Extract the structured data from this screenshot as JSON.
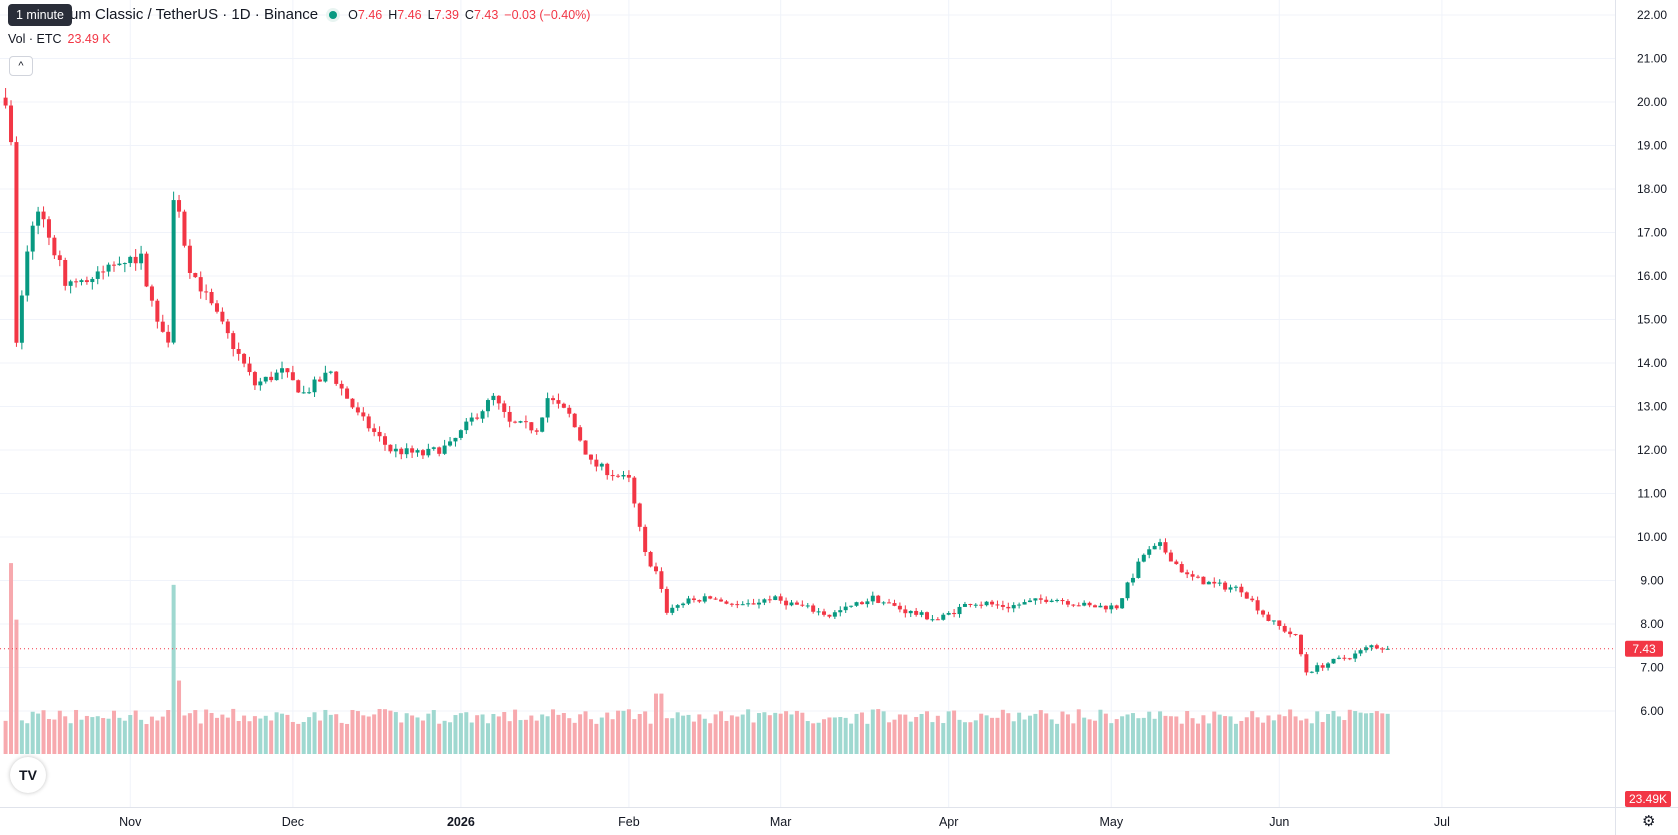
{
  "legend": {
    "symbol": "um Classic / TetherUS · 1D · Binance",
    "o_label": "O",
    "o": "7.46",
    "h_label": "H",
    "h": "7.46",
    "l_label": "L",
    "l": "7.39",
    "c_label": "C",
    "c": "7.43",
    "change": "−0.03 (−0.40%)"
  },
  "tooltip": "1 minute",
  "volume_label": {
    "name": "Vol · ETC",
    "value": "23.49 K"
  },
  "colors": {
    "up": "#089981",
    "down": "#f23645",
    "vol_up": "#9fd8d0",
    "vol_down": "#f7a9ae",
    "grid": "#f0f3fa"
  },
  "icons": {
    "collapse": "chevron-up-icon",
    "logo": "tradingview-logo-icon",
    "settings": "gear-icon"
  },
  "chart_data": {
    "type": "candlestick",
    "y_axis": {
      "ticks": [
        "6.00",
        "7.00",
        "8.00",
        "9.00",
        "10.00",
        "11.00",
        "12.00",
        "13.00",
        "14.00",
        "15.00",
        "16.00",
        "17.00",
        "18.00",
        "19.00",
        "20.00",
        "21.00",
        "22.00"
      ],
      "range": [
        5.6,
        22.2
      ],
      "position": "right"
    },
    "x_axis": {
      "labels": [
        "Nov",
        "Dec",
        "2026",
        "Feb",
        "Mar",
        "Apr",
        "May",
        "Jun",
        "Jul"
      ],
      "start_date": "2025-10-09",
      "end_date": "2026-06-21"
    },
    "last_price": "7.43",
    "last_volume": "23.49K",
    "anchors": [
      [
        "2025-10-09",
        20.1
      ],
      [
        "2025-10-10",
        19.0
      ],
      [
        "2025-10-11",
        14.4
      ],
      [
        "2025-10-13",
        16.6
      ],
      [
        "2025-10-15",
        17.6
      ],
      [
        "2025-10-20",
        15.9
      ],
      [
        "2025-10-25",
        15.9
      ],
      [
        "2025-10-30",
        16.4
      ],
      [
        "2025-11-03",
        16.4
      ],
      [
        "2025-11-06",
        14.9
      ],
      [
        "2025-11-08",
        14.6
      ],
      [
        "2025-11-09",
        17.9
      ],
      [
        "2025-11-12",
        16.2
      ],
      [
        "2025-11-20",
        14.4
      ],
      [
        "2025-11-24",
        13.5
      ],
      [
        "2025-11-29",
        13.8
      ],
      [
        "2025-12-03",
        13.3
      ],
      [
        "2025-12-08",
        13.8
      ],
      [
        "2025-12-13",
        12.8
      ],
      [
        "2025-12-19",
        12.0
      ],
      [
        "2025-12-25",
        11.9
      ],
      [
        "2025-12-30",
        12.1
      ],
      [
        "2026-01-03",
        12.7
      ],
      [
        "2026-01-07",
        13.2
      ],
      [
        "2026-01-10",
        12.6
      ],
      [
        "2026-01-15",
        12.5
      ],
      [
        "2026-01-17",
        13.2
      ],
      [
        "2026-01-21",
        12.8
      ],
      [
        "2026-01-25",
        11.7
      ],
      [
        "2026-01-30",
        11.4
      ],
      [
        "2026-02-01",
        11.3
      ],
      [
        "2026-02-04",
        9.6
      ],
      [
        "2026-02-06",
        9.2
      ],
      [
        "2026-02-08",
        8.3
      ],
      [
        "2026-02-11",
        8.5
      ],
      [
        "2026-02-16",
        8.6
      ],
      [
        "2026-02-22",
        8.4
      ],
      [
        "2026-02-27",
        8.6
      ],
      [
        "2026-03-05",
        8.4
      ],
      [
        "2026-03-10",
        8.2
      ],
      [
        "2026-03-18",
        8.6
      ],
      [
        "2026-03-24",
        8.3
      ],
      [
        "2026-03-30",
        8.1
      ],
      [
        "2026-04-05",
        8.5
      ],
      [
        "2026-04-12",
        8.4
      ],
      [
        "2026-04-20",
        8.6
      ],
      [
        "2026-04-27",
        8.4
      ],
      [
        "2026-05-02",
        8.4
      ],
      [
        "2026-05-07",
        9.6
      ],
      [
        "2026-05-10",
        9.8
      ],
      [
        "2026-05-15",
        9.1
      ],
      [
        "2026-05-20",
        8.9
      ],
      [
        "2026-05-25",
        8.8
      ],
      [
        "2026-05-30",
        8.1
      ],
      [
        "2026-06-04",
        7.7
      ],
      [
        "2026-06-06",
        6.9
      ],
      [
        "2026-06-10",
        7.1
      ],
      [
        "2026-06-15",
        7.3
      ],
      [
        "2026-06-18",
        7.5
      ],
      [
        "2026-06-21",
        7.43
      ]
    ],
    "volume_spikes": [
      [
        "2025-10-10",
        9.4
      ],
      [
        "2025-10-11",
        8.1
      ],
      [
        "2025-11-09",
        8.9
      ],
      [
        "2025-11-10",
        6.7
      ],
      [
        "2026-02-06",
        6.4
      ],
      [
        "2026-02-07",
        6.4
      ],
      [
        "2026-02-20",
        5.9
      ],
      [
        "2026-04-08",
        5.9
      ]
    ]
  }
}
